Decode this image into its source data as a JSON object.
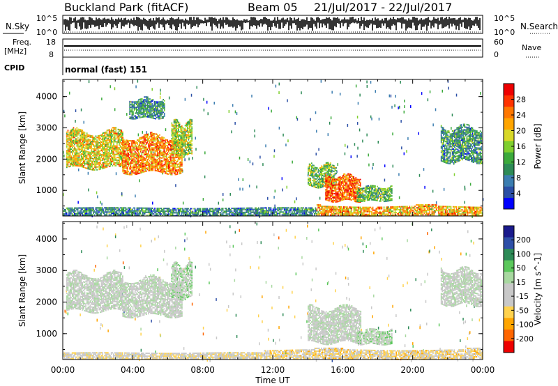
{
  "header": {
    "station": "Buckland Park (fitACF)",
    "beam": "Beam 05",
    "date_range": "21/Jul/2017 - 22/Jul/2017"
  },
  "noise_panel": {
    "left_label": "N.Sky",
    "right_label": "N.Search",
    "tick_top": "10^5",
    "tick_bottom": "10^0"
  },
  "freq_panel": {
    "left_label_1": "Freq.",
    "left_label_2": "[MHz]",
    "left_ticks": [
      "18",
      "8"
    ],
    "right_label": "Nave",
    "right_ticks": [
      "60",
      "0"
    ]
  },
  "cpid": {
    "label": "CPID",
    "value": "normal (fast) 151"
  },
  "chart_data": [
    {
      "type": "heatmap",
      "name": "power",
      "ylabel": "Slant Range [km]",
      "ylim": [
        180,
        4550
      ],
      "yticks": [
        1000,
        2000,
        3000,
        4000
      ],
      "colorbar_label": "Power [dB]",
      "colorbar_ticks": [
        "4",
        "8",
        "12",
        "16",
        "20",
        "24",
        "28"
      ],
      "colorbar_colors": [
        "#0000ff",
        "#2b4fa6",
        "#3b7db0",
        "#2e8b57",
        "#3caa3c",
        "#7fcf2f",
        "#d8d828",
        "#ffa500",
        "#ff7700",
        "#ff3300",
        "#ee0000"
      ],
      "regions": [
        {
          "t0": 0.2,
          "t1": 3.4,
          "r0": 1700,
          "r1": 2850,
          "level": 18
        },
        {
          "t0": 3.4,
          "t1": 6.8,
          "r0": 1550,
          "r1": 2700,
          "level": 22
        },
        {
          "t0": 6.2,
          "t1": 7.4,
          "r0": 2100,
          "r1": 3150,
          "level": 16
        },
        {
          "t0": 3.8,
          "t1": 5.8,
          "r0": 3300,
          "r1": 3900,
          "level": 9
        },
        {
          "t0": 14.0,
          "t1": 15.6,
          "r0": 1100,
          "r1": 1800,
          "level": 14
        },
        {
          "t0": 15.0,
          "t1": 17.0,
          "r0": 650,
          "r1": 1450,
          "level": 24
        },
        {
          "t0": 16.8,
          "t1": 18.8,
          "r0": 650,
          "r1": 1100,
          "level": 13
        },
        {
          "t0": 21.6,
          "t1": 23.95,
          "r0": 1900,
          "r1": 3000,
          "level": 10
        },
        {
          "t0": 0.0,
          "t1": 14.5,
          "r0": 180,
          "r1": 420,
          "level": 9
        },
        {
          "t0": 14.5,
          "t1": 24.0,
          "r0": 180,
          "r1": 480,
          "level": 20
        }
      ]
    },
    {
      "type": "heatmap",
      "name": "velocity",
      "xlabel": "Time UT",
      "xticks": [
        "00:00",
        "04:00",
        "08:00",
        "12:00",
        "16:00",
        "20:00",
        "00:00"
      ],
      "xlim": [
        0,
        24
      ],
      "ylabel": "Slant Range [km]",
      "ylim": [
        180,
        4550
      ],
      "yticks": [
        1000,
        2000,
        3000,
        4000
      ],
      "colorbar_label": "Velocity [m s^-1]",
      "colorbar_ticks": [
        "200",
        "100",
        "50",
        "15",
        "-15",
        "-50",
        "-100",
        "-200"
      ],
      "colorbar_colors": [
        "#1a1a8c",
        "#2e4fa8",
        "#2e8b57",
        "#5cc85c",
        "#a8d8a0",
        "#c8c8c8",
        "#c8c8c8",
        "#ffd24d",
        "#ffa500",
        "#ff6600",
        "#ee0000"
      ],
      "regions": [
        {
          "t0": 0.2,
          "t1": 3.4,
          "r0": 1700,
          "r1": 2850,
          "level": 0
        },
        {
          "t0": 3.4,
          "t1": 6.8,
          "r0": 1550,
          "r1": 2700,
          "level": 0
        },
        {
          "t0": 6.2,
          "t1": 7.4,
          "r0": 2100,
          "r1": 3150,
          "level": 20
        },
        {
          "t0": 14.0,
          "t1": 17.0,
          "r0": 700,
          "r1": 1800,
          "level": 0
        },
        {
          "t0": 16.8,
          "t1": 18.8,
          "r0": 650,
          "r1": 1100,
          "level": 25
        },
        {
          "t0": 21.6,
          "t1": 23.95,
          "r0": 1900,
          "r1": 3000,
          "level": 0
        },
        {
          "t0": 11.5,
          "t1": 24.0,
          "r0": 180,
          "r1": 480,
          "level": -60
        },
        {
          "t0": 0.0,
          "t1": 11.5,
          "r0": 180,
          "r1": 380,
          "level": -40
        }
      ]
    }
  ]
}
